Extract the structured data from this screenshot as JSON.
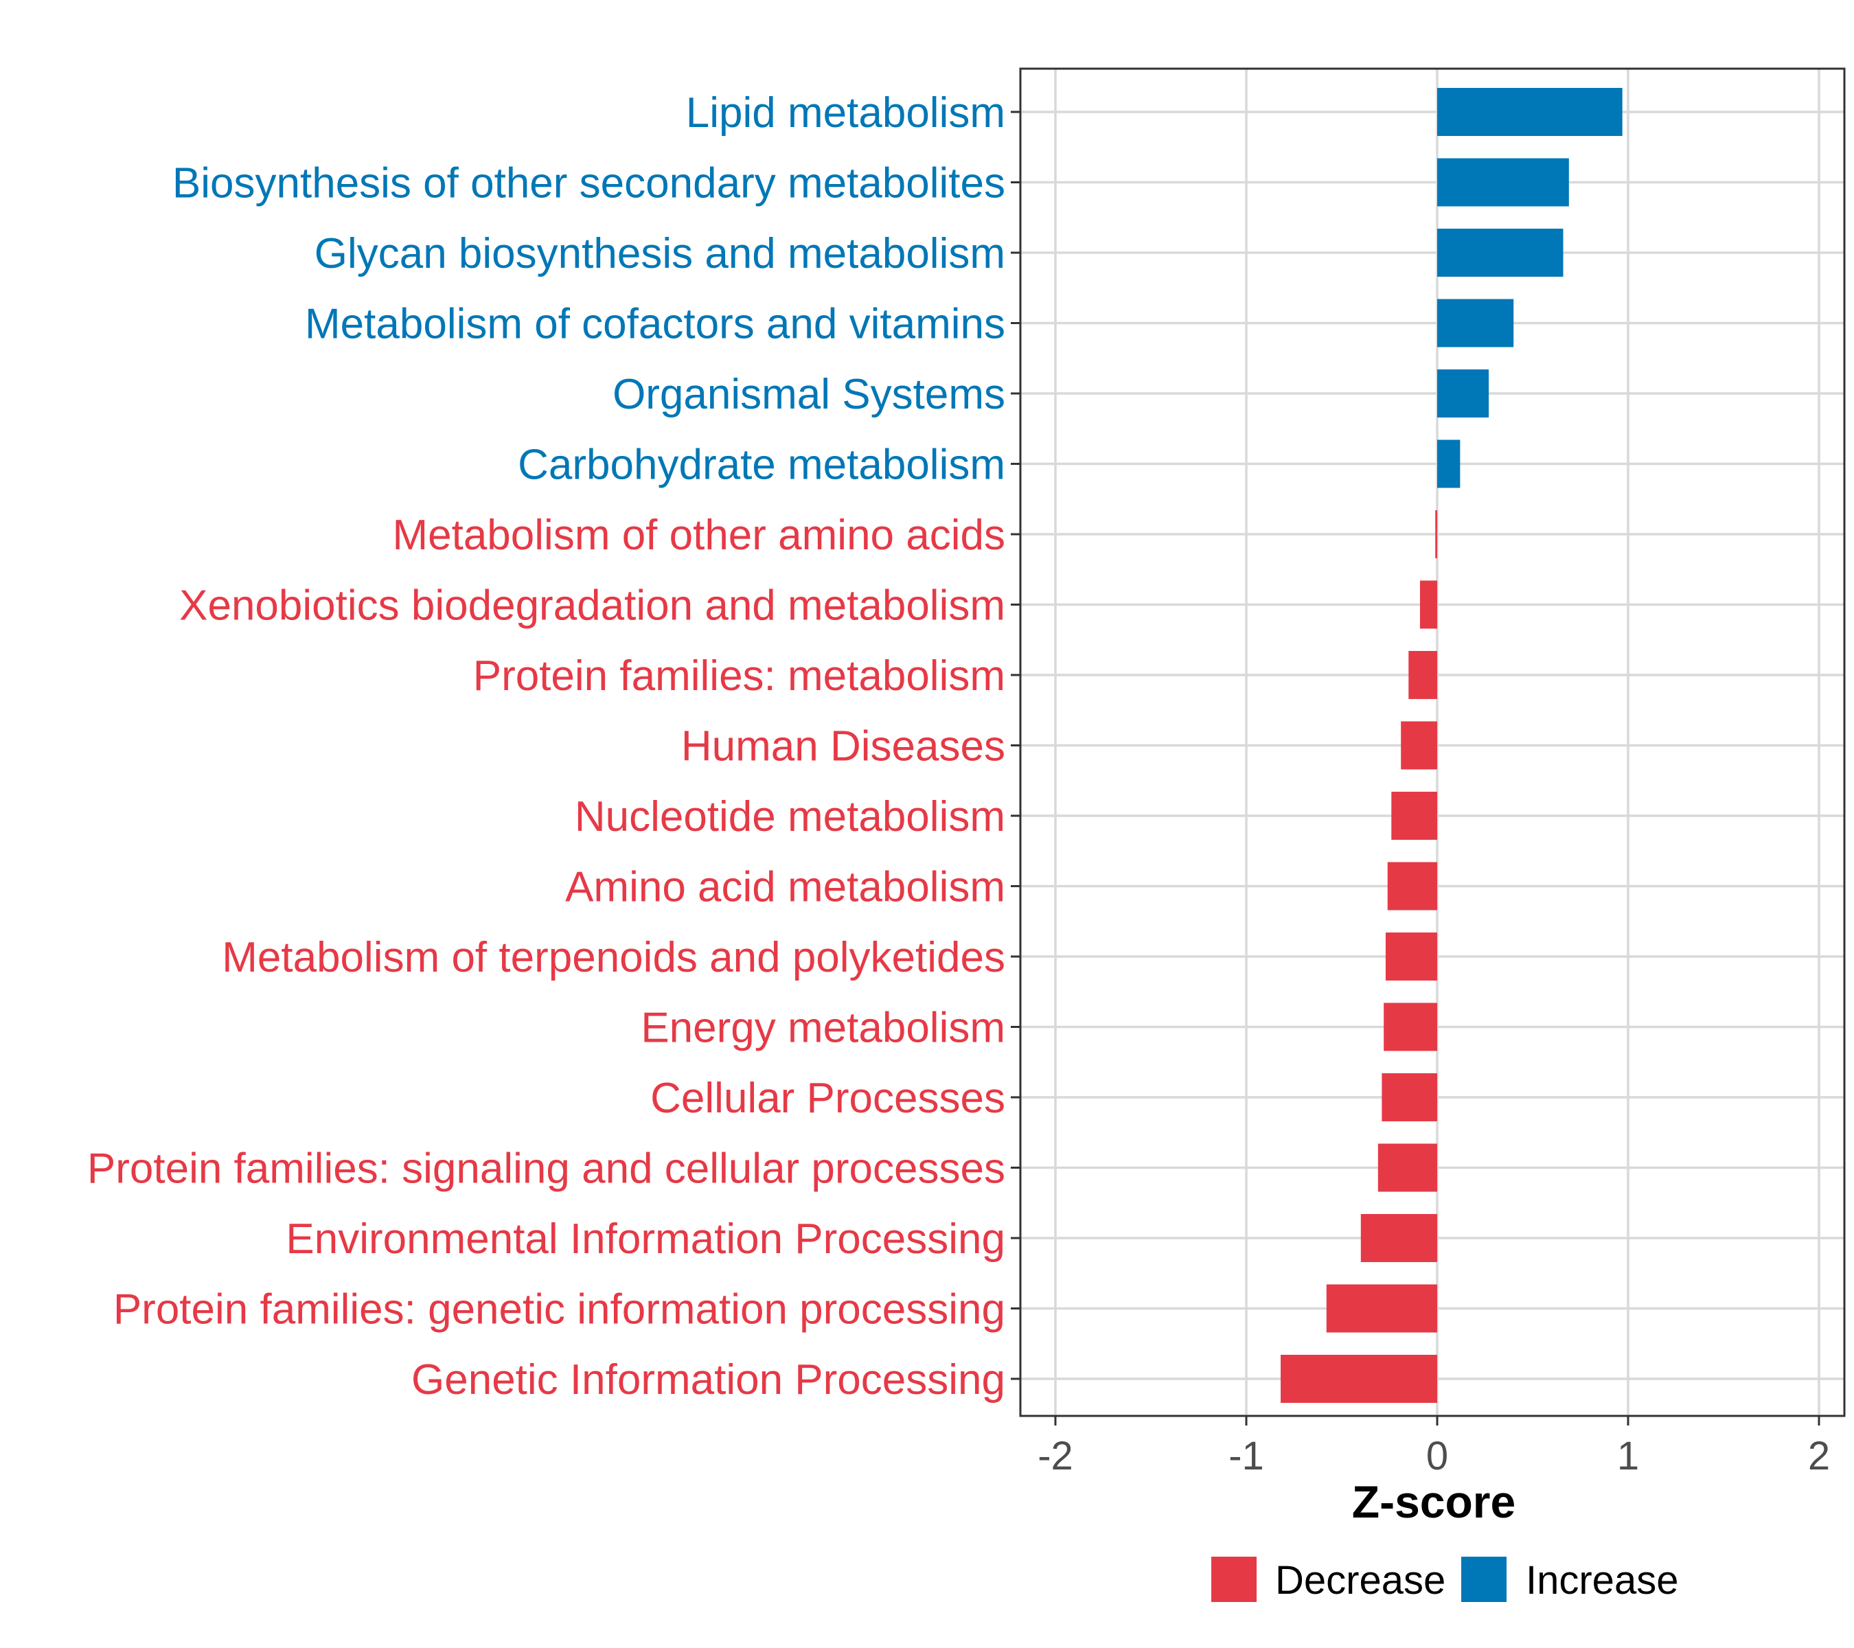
{
  "chart_data": {
    "type": "bar",
    "orientation": "horizontal",
    "xlabel": "Z-score",
    "xlim": [
      -2.15,
      2.15
    ],
    "xticks": [
      -2,
      -1,
      0,
      1,
      2
    ],
    "xtick_labels": [
      "-2",
      "-1",
      "0",
      "1",
      "2"
    ],
    "grid": true,
    "legend_placement": "bottom",
    "legend": [
      {
        "name": "Decrease",
        "color": "#E63946"
      },
      {
        "name": "Increase",
        "color": "#0077B6"
      }
    ],
    "categories": [
      "Lipid metabolism",
      "Biosynthesis of other secondary metabolites",
      "Glycan biosynthesis and metabolism",
      "Metabolism of cofactors and vitamins",
      "Organismal Systems",
      "Carbohydrate metabolism",
      "Metabolism of other amino acids",
      "Xenobiotics biodegradation and metabolism",
      "Protein families: metabolism",
      "Human Diseases",
      "Nucleotide metabolism",
      "Amino acid metabolism",
      "Metabolism of terpenoids and polyketides",
      "Energy metabolism",
      "Cellular Processes",
      "Protein families: signaling and cellular processes",
      "Environmental Information Processing",
      "Protein families: genetic information processing",
      "Genetic Information Processing"
    ],
    "values": [
      0.97,
      0.69,
      0.66,
      0.4,
      0.27,
      0.12,
      -0.01,
      -0.09,
      -0.15,
      -0.19,
      -0.24,
      -0.26,
      -0.27,
      -0.28,
      -0.29,
      -0.31,
      -0.4,
      -0.58,
      -0.82
    ],
    "groups": [
      "Increase",
      "Increase",
      "Increase",
      "Increase",
      "Increase",
      "Increase",
      "Decrease",
      "Decrease",
      "Decrease",
      "Decrease",
      "Decrease",
      "Decrease",
      "Decrease",
      "Decrease",
      "Decrease",
      "Decrease",
      "Decrease",
      "Decrease",
      "Decrease"
    ]
  }
}
